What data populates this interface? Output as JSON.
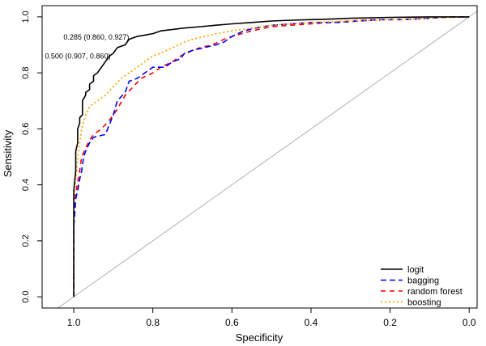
{
  "chart_data": {
    "type": "line",
    "title": "",
    "xlabel": "Specificity",
    "ylabel": "Sensitivity",
    "xlim": [
      1.08,
      -0.02
    ],
    "ylim": [
      -0.04,
      1.04
    ],
    "x_reversed": true,
    "x_ticks": [
      1.0,
      0.8,
      0.6,
      0.4,
      0.2,
      0.0
    ],
    "x_tick_labels": [
      "1.0",
      "0.8",
      "0.6",
      "0.4",
      "0.2",
      "0.0"
    ],
    "y_ticks": [
      0.0,
      0.2,
      0.4,
      0.6,
      0.8,
      1.0
    ],
    "y_tick_labels": [
      "0.0",
      "0.2",
      "0.4",
      "0.6",
      "0.8",
      "1.0"
    ],
    "grid": false,
    "legend_position": "bottom-right",
    "reference_line": {
      "color": "#b0b0b0",
      "from": [
        1.08,
        -0.08
      ],
      "to": [
        -0.02,
        1.02
      ]
    },
    "annotations": [
      {
        "text": "0.285 (0.860, 0.927)",
        "x": 0.86,
        "y": 0.927
      },
      {
        "text": "0.500 (0.907, 0.860)",
        "x": 0.907,
        "y": 0.86
      }
    ],
    "series": [
      {
        "name": "logit",
        "color": "#000000",
        "dash": "",
        "width": 1.6,
        "points": [
          [
            1.0,
            0.0
          ],
          [
            1.0,
            0.38
          ],
          [
            0.995,
            0.45
          ],
          [
            0.995,
            0.52
          ],
          [
            0.99,
            0.55
          ],
          [
            0.99,
            0.6
          ],
          [
            0.985,
            0.62
          ],
          [
            0.985,
            0.64
          ],
          [
            0.978,
            0.65
          ],
          [
            0.978,
            0.7
          ],
          [
            0.97,
            0.72
          ],
          [
            0.97,
            0.73
          ],
          [
            0.96,
            0.74
          ],
          [
            0.96,
            0.76
          ],
          [
            0.95,
            0.77
          ],
          [
            0.95,
            0.79
          ],
          [
            0.94,
            0.8
          ],
          [
            0.93,
            0.82
          ],
          [
            0.92,
            0.84
          ],
          [
            0.91,
            0.86
          ],
          [
            0.9,
            0.87
          ],
          [
            0.89,
            0.89
          ],
          [
            0.87,
            0.9
          ],
          [
            0.86,
            0.92
          ],
          [
            0.84,
            0.93
          ],
          [
            0.82,
            0.935
          ],
          [
            0.8,
            0.94
          ],
          [
            0.78,
            0.95
          ],
          [
            0.75,
            0.955
          ],
          [
            0.72,
            0.96
          ],
          [
            0.68,
            0.965
          ],
          [
            0.64,
            0.97
          ],
          [
            0.6,
            0.975
          ],
          [
            0.55,
            0.98
          ],
          [
            0.5,
            0.985
          ],
          [
            0.45,
            0.988
          ],
          [
            0.4,
            0.99
          ],
          [
            0.35,
            0.992
          ],
          [
            0.3,
            0.995
          ],
          [
            0.2,
            0.998
          ],
          [
            0.1,
            1.0
          ],
          [
            0.0,
            1.0
          ]
        ]
      },
      {
        "name": "bagging",
        "color": "#0000ff",
        "dash": "7,4",
        "width": 1.6,
        "points": [
          [
            1.0,
            0.0
          ],
          [
            1.0,
            0.25
          ],
          [
            0.995,
            0.35
          ],
          [
            0.99,
            0.38
          ],
          [
            0.985,
            0.42
          ],
          [
            0.98,
            0.45
          ],
          [
            0.975,
            0.5
          ],
          [
            0.97,
            0.52
          ],
          [
            0.96,
            0.55
          ],
          [
            0.95,
            0.57
          ],
          [
            0.92,
            0.58
          ],
          [
            0.9,
            0.65
          ],
          [
            0.89,
            0.7
          ],
          [
            0.87,
            0.73
          ],
          [
            0.86,
            0.77
          ],
          [
            0.84,
            0.78
          ],
          [
            0.82,
            0.8
          ],
          [
            0.8,
            0.82
          ],
          [
            0.77,
            0.82
          ],
          [
            0.75,
            0.84
          ],
          [
            0.73,
            0.85
          ],
          [
            0.72,
            0.87
          ],
          [
            0.7,
            0.88
          ],
          [
            0.67,
            0.89
          ],
          [
            0.64,
            0.9
          ],
          [
            0.62,
            0.91
          ],
          [
            0.6,
            0.93
          ],
          [
            0.57,
            0.95
          ],
          [
            0.54,
            0.96
          ],
          [
            0.5,
            0.97
          ],
          [
            0.45,
            0.975
          ],
          [
            0.4,
            0.98
          ],
          [
            0.33,
            0.98
          ],
          [
            0.28,
            0.985
          ],
          [
            0.22,
            0.99
          ],
          [
            0.17,
            0.99
          ],
          [
            0.1,
            0.995
          ],
          [
            0.05,
            1.0
          ],
          [
            0.0,
            1.0
          ]
        ]
      },
      {
        "name": "random forest",
        "color": "#ff0000",
        "dash": "6,5",
        "width": 1.6,
        "points": [
          [
            1.0,
            0.0
          ],
          [
            1.0,
            0.3
          ],
          [
            0.995,
            0.37
          ],
          [
            0.985,
            0.45
          ],
          [
            0.98,
            0.5
          ],
          [
            0.97,
            0.53
          ],
          [
            0.96,
            0.56
          ],
          [
            0.95,
            0.58
          ],
          [
            0.93,
            0.6
          ],
          [
            0.91,
            0.63
          ],
          [
            0.89,
            0.67
          ],
          [
            0.87,
            0.72
          ],
          [
            0.85,
            0.75
          ],
          [
            0.83,
            0.78
          ],
          [
            0.8,
            0.8
          ],
          [
            0.78,
            0.82
          ],
          [
            0.75,
            0.84
          ],
          [
            0.73,
            0.86
          ],
          [
            0.7,
            0.88
          ],
          [
            0.68,
            0.89
          ],
          [
            0.65,
            0.9
          ],
          [
            0.62,
            0.92
          ],
          [
            0.6,
            0.93
          ],
          [
            0.55,
            0.95
          ],
          [
            0.5,
            0.965
          ],
          [
            0.45,
            0.97
          ],
          [
            0.4,
            0.975
          ],
          [
            0.35,
            0.98
          ],
          [
            0.3,
            0.985
          ],
          [
            0.25,
            0.99
          ],
          [
            0.2,
            0.99
          ],
          [
            0.1,
            0.995
          ],
          [
            0.05,
            1.0
          ],
          [
            0.0,
            1.0
          ]
        ]
      },
      {
        "name": "boosting",
        "color": "#ffa500",
        "dash": "2,3",
        "width": 1.8,
        "points": [
          [
            1.0,
            0.0
          ],
          [
            1.0,
            0.35
          ],
          [
            0.995,
            0.42
          ],
          [
            0.99,
            0.5
          ],
          [
            0.985,
            0.55
          ],
          [
            0.98,
            0.6
          ],
          [
            0.97,
            0.65
          ],
          [
            0.96,
            0.68
          ],
          [
            0.94,
            0.7
          ],
          [
            0.92,
            0.72
          ],
          [
            0.9,
            0.75
          ],
          [
            0.88,
            0.78
          ],
          [
            0.86,
            0.8
          ],
          [
            0.84,
            0.82
          ],
          [
            0.82,
            0.84
          ],
          [
            0.8,
            0.86
          ],
          [
            0.78,
            0.87
          ],
          [
            0.75,
            0.89
          ],
          [
            0.72,
            0.91
          ],
          [
            0.7,
            0.92
          ],
          [
            0.67,
            0.93
          ],
          [
            0.64,
            0.94
          ],
          [
            0.6,
            0.95
          ],
          [
            0.55,
            0.96
          ],
          [
            0.5,
            0.97
          ],
          [
            0.45,
            0.975
          ],
          [
            0.4,
            0.98
          ],
          [
            0.3,
            0.985
          ],
          [
            0.2,
            0.99
          ],
          [
            0.1,
            0.995
          ],
          [
            0.0,
            1.0
          ]
        ]
      }
    ]
  }
}
